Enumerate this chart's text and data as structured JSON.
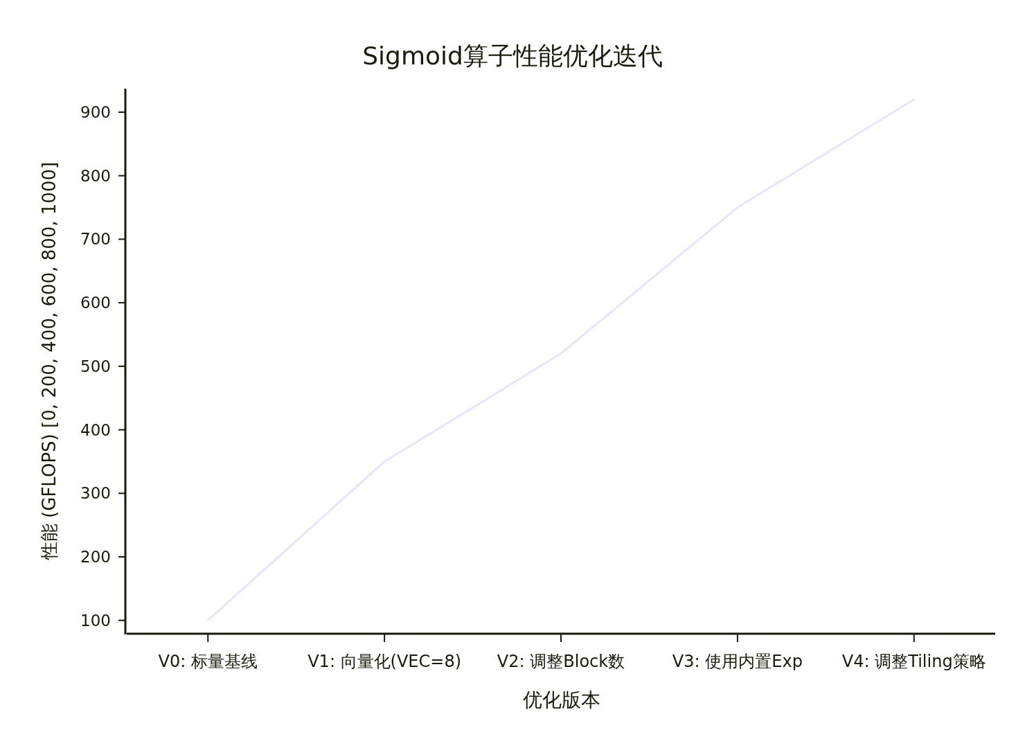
{
  "chart_data": {
    "type": "line",
    "title": "Sigmoid算子性能优化迭代",
    "xlabel": "优化版本",
    "ylabel": "性能 (GFLOPS) [0, 200, 400, 600, 800, 1000]",
    "categories": [
      "V0: 标量基线",
      "V1: 向量化(VEC=8)",
      "V2: 调整Block数",
      "V3: 使用内置Exp",
      "V4: 调整Tiling策略"
    ],
    "series": [
      {
        "color": "#e6e6fa",
        "values": [
          100,
          350,
          520,
          750,
          920
        ]
      }
    ],
    "ylim": [
      79,
      937
    ],
    "yticks": [
      100,
      200,
      300,
      400,
      500,
      600,
      700,
      800,
      900
    ],
    "grid": false
  }
}
